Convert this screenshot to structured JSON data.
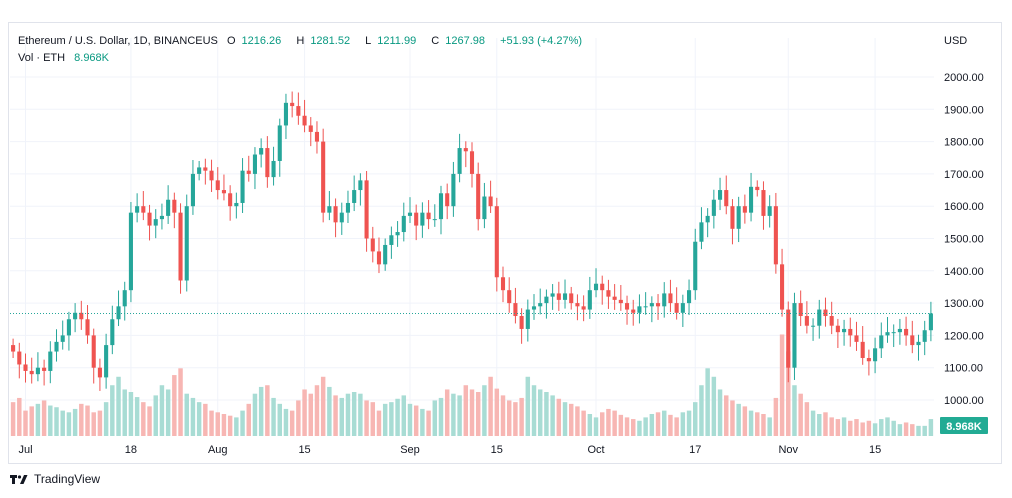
{
  "legend": {
    "symbol_line": "Ethereum / U.S. Dollar, 1D, BINANCEUS",
    "o_label": "O",
    "o_value": "1216.26",
    "h_label": "H",
    "h_value": "1281.52",
    "l_label": "L",
    "l_value": "1211.99",
    "c_label": "C",
    "c_value": "1267.98",
    "change": "+51.93 (+4.27%)",
    "vol_label": "Vol · ETH",
    "vol_value": "8.968K"
  },
  "currency": "USD",
  "footer": {
    "brand": "TradingView"
  },
  "colors": {
    "up": "#26a69a",
    "down": "#ef5350",
    "vol_up": "#a8dcd4",
    "vol_down": "#f7b6b3",
    "text": "#131722",
    "grid": "#f0f3fa",
    "badge": "#22ab94"
  },
  "chart_data": {
    "type": "candlestick",
    "title": "Ethereum / U.S. Dollar, 1D, BINANCEUS",
    "ylabel": "USD",
    "ylim": [
      950,
      2050
    ],
    "y_ticks": [
      "2000.00",
      "1900.00",
      "1800.00",
      "1700.00",
      "1600.00",
      "1500.00",
      "1400.00",
      "1300.00",
      "1200.00",
      "1100.00",
      "1000.00"
    ],
    "x_ticks": [
      {
        "index": 2,
        "label": "Jul"
      },
      {
        "index": 19,
        "label": "18"
      },
      {
        "index": 33,
        "label": "Aug"
      },
      {
        "index": 47,
        "label": "15"
      },
      {
        "index": 64,
        "label": "Sep"
      },
      {
        "index": 78,
        "label": "15"
      },
      {
        "index": 94,
        "label": "Oct"
      },
      {
        "index": 110,
        "label": "17"
      },
      {
        "index": 125,
        "label": "Nov"
      },
      {
        "index": 139,
        "label": "15"
      }
    ],
    "last_price": 1267.98,
    "last_volume_label": "8.968K",
    "closes": [
      1150,
      1110,
      1090,
      1080,
      1100,
      1090,
      1150,
      1180,
      1200,
      1250,
      1270,
      1250,
      1200,
      1100,
      1070,
      1170,
      1250,
      1290,
      1340,
      1580,
      1600,
      1580,
      1540,
      1560,
      1570,
      1620,
      1580,
      1370,
      1600,
      1700,
      1720,
      1710,
      1680,
      1650,
      1640,
      1600,
      1610,
      1710,
      1700,
      1760,
      1780,
      1690,
      1740,
      1850,
      1920,
      1910,
      1880,
      1850,
      1830,
      1800,
      1580,
      1600,
      1550,
      1580,
      1610,
      1650,
      1680,
      1500,
      1460,
      1420,
      1480,
      1510,
      1520,
      1570,
      1580,
      1540,
      1580,
      1560,
      1560,
      1640,
      1600,
      1700,
      1780,
      1770,
      1700,
      1560,
      1630,
      1600,
      1380,
      1340,
      1300,
      1260,
      1220,
      1280,
      1290,
      1300,
      1320,
      1330,
      1310,
      1330,
      1300,
      1290,
      1280,
      1340,
      1360,
      1340,
      1320,
      1310,
      1300,
      1280,
      1270,
      1290,
      1290,
      1300,
      1290,
      1330,
      1300,
      1270,
      1300,
      1340,
      1490,
      1550,
      1570,
      1620,
      1650,
      1600,
      1530,
      1600,
      1580,
      1660,
      1650,
      1570,
      1600,
      1420,
      1280,
      1100,
      1300,
      1260,
      1230,
      1230,
      1280,
      1260,
      1230,
      1210,
      1220,
      1200,
      1180,
      1130,
      1120,
      1160,
      1200,
      1210,
      1210,
      1220,
      1200,
      1170,
      1180,
      1216,
      1268
    ],
    "volumes": [
      40,
      45,
      30,
      35,
      38,
      42,
      36,
      34,
      30,
      28,
      32,
      38,
      36,
      28,
      30,
      40,
      60,
      70,
      55,
      52,
      46,
      40,
      35,
      48,
      60,
      55,
      72,
      80,
      50,
      45,
      40,
      38,
      30,
      28,
      26,
      24,
      22,
      30,
      38,
      50,
      58,
      60,
      45,
      38,
      32,
      30,
      42,
      55,
      50,
      60,
      70,
      58,
      48,
      45,
      50,
      52,
      50,
      42,
      40,
      30,
      38,
      40,
      44,
      48,
      38,
      36,
      32,
      30,
      42,
      45,
      55,
      50,
      48,
      60,
      55,
      52,
      60,
      70,
      56,
      48,
      42,
      40,
      45,
      70,
      60,
      55,
      52,
      48,
      44,
      40,
      38,
      35,
      30,
      26,
      22,
      28,
      32,
      30,
      25,
      22,
      20,
      18,
      22,
      26,
      28,
      30,
      25,
      22,
      28,
      30,
      40,
      60,
      80,
      70,
      55,
      48,
      42,
      38,
      35,
      30,
      28,
      26,
      22,
      45,
      120,
      100,
      60,
      50,
      40,
      30,
      26,
      28,
      22,
      20,
      22,
      18,
      20,
      16,
      18,
      15,
      20,
      22,
      18,
      14,
      16,
      14,
      12,
      12,
      20
    ]
  }
}
